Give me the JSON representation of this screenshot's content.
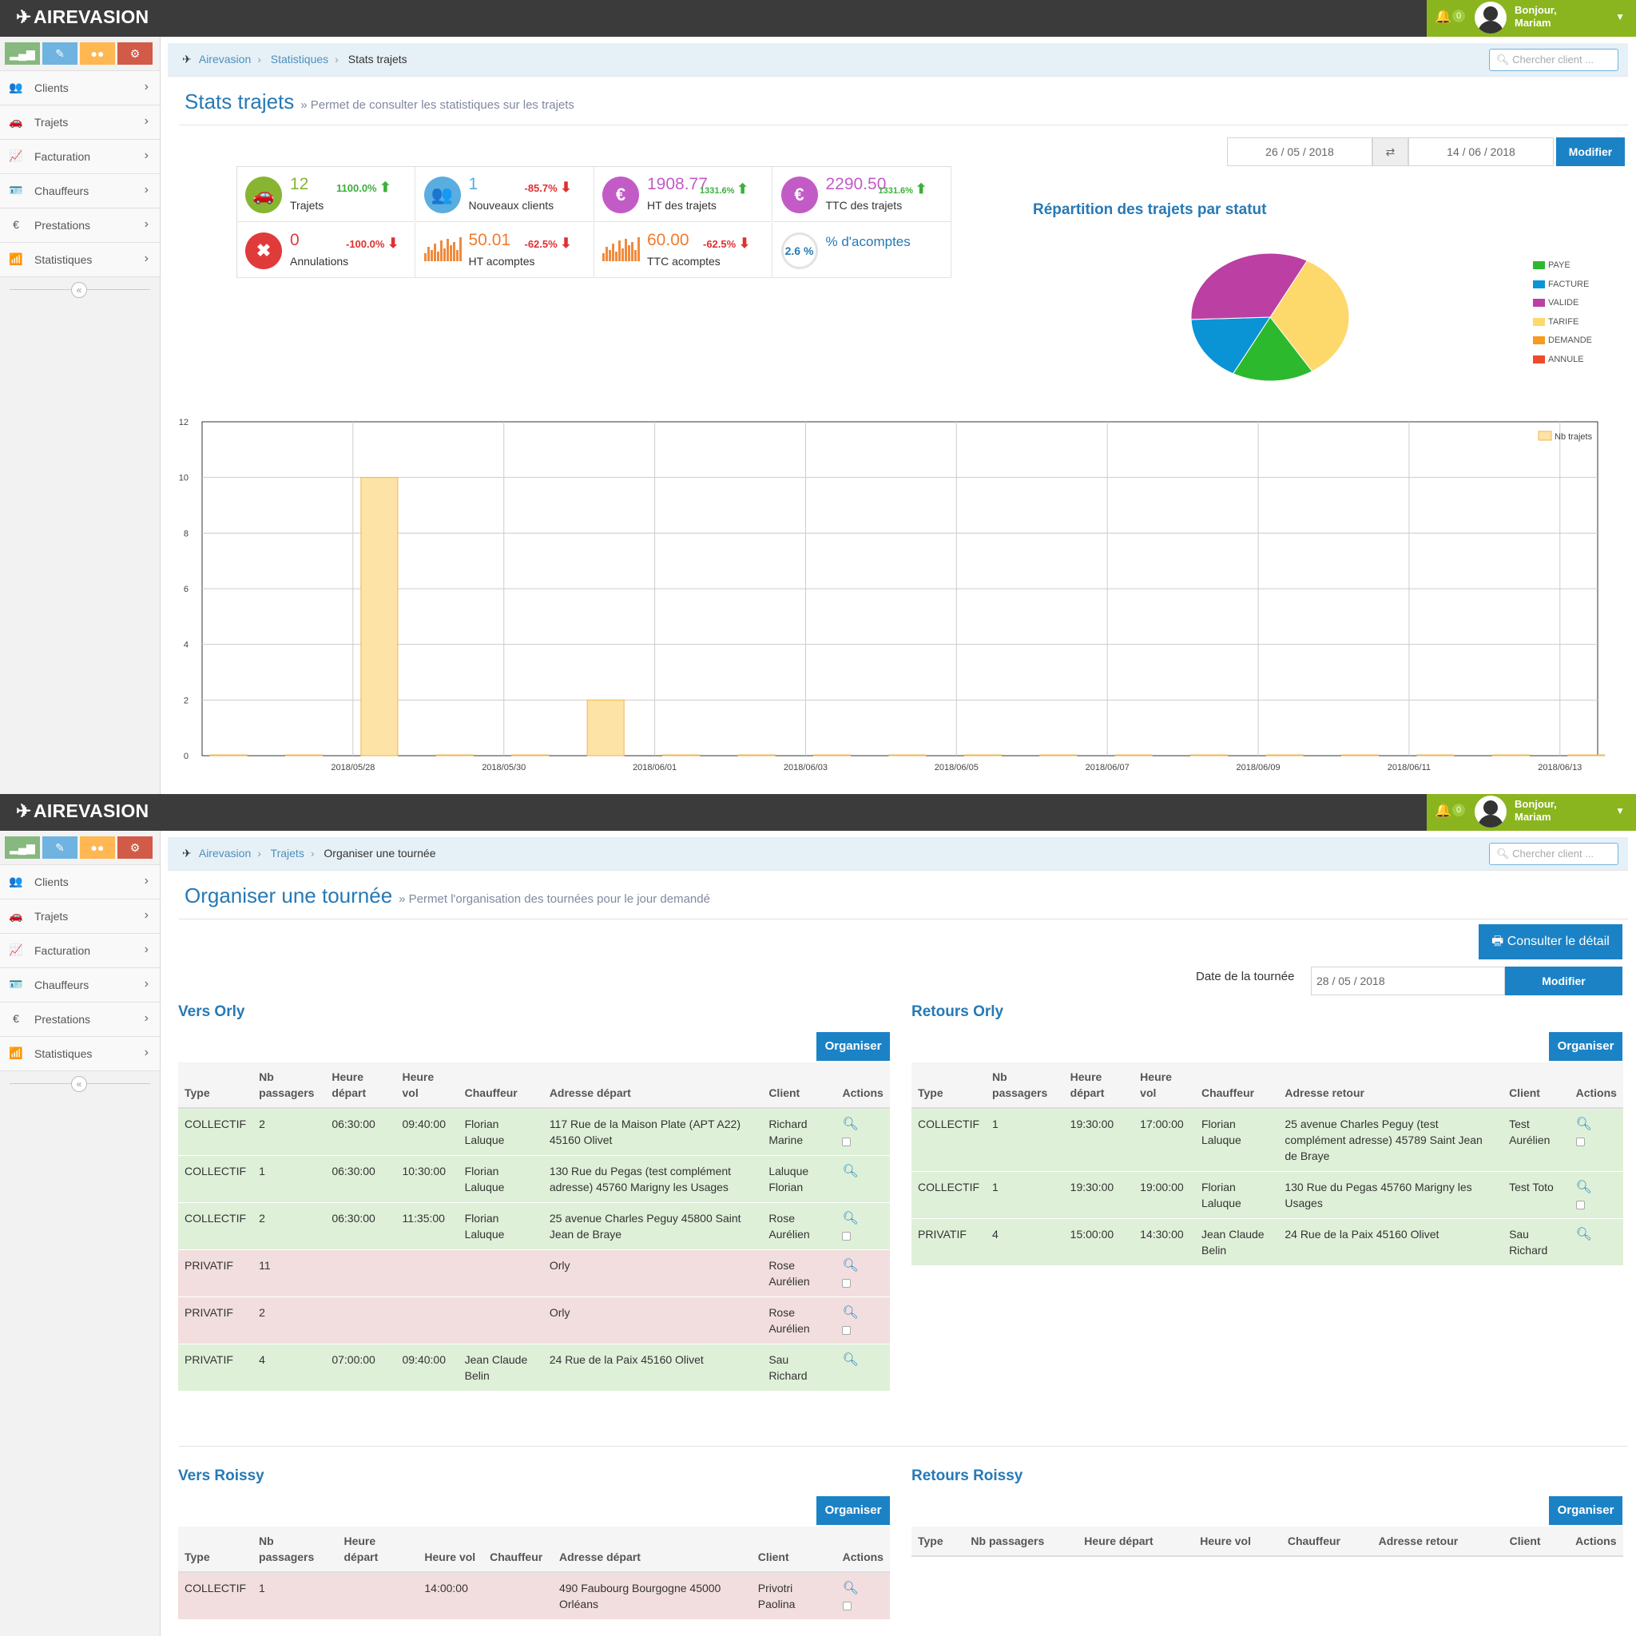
{
  "app": {
    "brand": "AIREVASION",
    "notif_count": "0",
    "greeting": "Bonjour,",
    "user": "Mariam",
    "search_placeholder": "Chercher client ..."
  },
  "sidebar": {
    "items": [
      {
        "label": "Clients",
        "icon": "users-icon"
      },
      {
        "label": "Trajets",
        "icon": "car-icon"
      },
      {
        "label": "Facturation",
        "icon": "chart-line-icon"
      },
      {
        "label": "Chauffeurs",
        "icon": "id-card-icon"
      },
      {
        "label": "Prestations",
        "icon": "euro-icon"
      },
      {
        "label": "Statistiques",
        "icon": "signal-icon"
      }
    ]
  },
  "stats_page": {
    "breadcrumb": [
      "Airevasion",
      "Statistiques",
      "Stats trajets"
    ],
    "title": "Stats trajets",
    "subtitle": "» Permet de consulter les statistiques sur les trajets",
    "date_from": "26 / 05 / 2018",
    "date_to": "14 / 06 / 2018",
    "modify": "Modifier",
    "tiles": [
      {
        "value": "12",
        "pct": "1100.0%",
        "dir": "up",
        "label": "Trajets",
        "color": "#87b532"
      },
      {
        "value": "1",
        "pct": "-85.7%",
        "dir": "down",
        "label": "Nouveaux clients",
        "color": "#5aaddf"
      },
      {
        "value": "1908.77",
        "pct": "1331.6%",
        "dir": "up",
        "label": "HT des trajets",
        "color": "#c35bc7"
      },
      {
        "value": "2290.50",
        "pct": "1331.6%",
        "dir": "up",
        "label": "TTC des trajets",
        "color": "#c35bc7"
      },
      {
        "value": "0",
        "pct": "-100.0%",
        "dir": "down",
        "label": "Annulations",
        "color": "#e03a3a"
      },
      {
        "value": "50.01",
        "pct": "-62.5%",
        "dir": "down",
        "label": "HT acomptes",
        "color": "#ef7c2f"
      },
      {
        "value": "60.00",
        "pct": "-62.5%",
        "dir": "down",
        "label": "TTC acomptes",
        "color": "#ef7c2f"
      },
      {
        "value": "2.6 %",
        "pct": "",
        "dir": "",
        "label": "% d'acomptes",
        "color": "#2679b5"
      }
    ],
    "pie_title": "Répartition des trajets par statut",
    "legend": [
      {
        "label": "PAYE",
        "color": "#2db92d"
      },
      {
        "label": "FACTURE",
        "color": "#0a94d6"
      },
      {
        "label": "VALIDE",
        "color": "#bc3fa3"
      },
      {
        "label": "TARIFE",
        "color": "#fdd96b"
      },
      {
        "label": "DEMANDE",
        "color": "#f79a1e"
      },
      {
        "label": "ANNULE",
        "color": "#ef4a2b"
      }
    ]
  },
  "chart_data": [
    {
      "type": "pie",
      "title": "Répartition des trajets par statut",
      "categories": [
        "PAYE",
        "FACTURE",
        "VALIDE",
        "TARIFE",
        "DEMANDE",
        "ANNULE"
      ],
      "values": [
        2,
        2,
        4,
        4,
        0,
        0
      ],
      "colors": [
        "#2db92d",
        "#0a94d6",
        "#bc3fa3",
        "#fdd96b",
        "#f79a1e",
        "#ef4a2b"
      ]
    },
    {
      "type": "bar",
      "series": [
        {
          "name": "Nb trajets",
          "values": [
            0,
            0,
            10,
            0,
            0,
            2,
            0,
            0,
            0,
            0,
            0,
            0,
            0,
            0,
            0,
            0,
            0,
            0,
            0
          ]
        }
      ],
      "x": [
        "2018/05/26",
        "2018/05/27",
        "2018/05/28",
        "2018/05/29",
        "2018/05/30",
        "2018/05/31",
        "2018/06/01",
        "2018/06/02",
        "2018/06/03",
        "2018/06/04",
        "2018/06/05",
        "2018/06/06",
        "2018/06/07",
        "2018/06/08",
        "2018/06/09",
        "2018/06/10",
        "2018/06/11",
        "2018/06/12",
        "2018/06/13"
      ],
      "xticks": [
        "2018/05/28",
        "2018/05/30",
        "2018/06/01",
        "2018/06/03",
        "2018/06/05",
        "2018/06/07",
        "2018/06/09",
        "2018/06/11",
        "2018/06/13"
      ],
      "yticks": [
        0,
        2,
        4,
        6,
        8,
        10,
        12
      ],
      "ylim": [
        0,
        12
      ],
      "grid": true,
      "legend": "top-right",
      "color": "#fde3a6"
    }
  ],
  "tour_page": {
    "breadcrumb": [
      "Airevasion",
      "Trajets",
      "Organiser une tournée"
    ],
    "title": "Organiser une tournée",
    "subtitle": "» Permet l'organisation des tournées pour le jour demandé",
    "detail_button": "Consulter le détail",
    "date_label": "Date de la tournée",
    "date_value": "28 / 05 / 2018",
    "modify": "Modifier",
    "organise": "Organiser",
    "vers_orly": {
      "title": "Vers Orly",
      "headers": [
        "Type",
        "Nb passagers",
        "Heure départ",
        "Heure vol",
        "Chauffeur",
        "Adresse départ",
        "Client",
        "Actions"
      ],
      "rows": [
        {
          "c": "g",
          "type": "COLLECTIF",
          "nb": "2",
          "dep": "06:30:00",
          "vol": "09:40:00",
          "chauffeur": "Florian Laluque",
          "adresse": "117 Rue de la Maison Plate (APT A22) 45160 Olivet",
          "client": "Richard Marine",
          "chk": true
        },
        {
          "c": "g",
          "type": "COLLECTIF",
          "nb": "1",
          "dep": "06:30:00",
          "vol": "10:30:00",
          "chauffeur": "Florian Laluque",
          "adresse": "130 Rue du Pegas (test complément adresse) 45760 Marigny les Usages",
          "client": "Laluque Florian",
          "chk": false
        },
        {
          "c": "g",
          "type": "COLLECTIF",
          "nb": "2",
          "dep": "06:30:00",
          "vol": "11:35:00",
          "chauffeur": "Florian Laluque",
          "adresse": "25 avenue Charles Peguy 45800 Saint Jean de Braye",
          "client": "Rose Aurélien",
          "chk": true
        },
        {
          "c": "r",
          "type": "PRIVATIF",
          "nb": "11",
          "dep": "",
          "vol": "",
          "chauffeur": "",
          "adresse": "Orly",
          "client": "Rose Aurélien",
          "chk": true
        },
        {
          "c": "r",
          "type": "PRIVATIF",
          "nb": "2",
          "dep": "",
          "vol": "",
          "chauffeur": "",
          "adresse": "Orly",
          "client": "Rose Aurélien",
          "chk": true
        },
        {
          "c": "g",
          "type": "PRIVATIF",
          "nb": "4",
          "dep": "07:00:00",
          "vol": "09:40:00",
          "chauffeur": "Jean Claude Belin",
          "adresse": "24 Rue de la Paix 45160 Olivet",
          "client": "Sau Richard",
          "chk": false
        }
      ]
    },
    "retours_orly": {
      "title": "Retours Orly",
      "headers": [
        "Type",
        "Nb passagers",
        "Heure départ",
        "Heure vol",
        "Chauffeur",
        "Adresse retour",
        "Client",
        "Actions"
      ],
      "rows": [
        {
          "c": "g",
          "type": "COLLECTIF",
          "nb": "1",
          "dep": "19:30:00",
          "vol": "17:00:00",
          "chauffeur": "Florian Laluque",
          "adresse": "25 avenue Charles Peguy (test complément adresse) 45789 Saint Jean de Braye",
          "client": "Test Aurélien",
          "chk": true
        },
        {
          "c": "g",
          "type": "COLLECTIF",
          "nb": "1",
          "dep": "19:30:00",
          "vol": "19:00:00",
          "chauffeur": "Florian Laluque",
          "adresse": "130 Rue du Pegas 45760 Marigny les Usages",
          "client": "Test Toto",
          "chk": true
        },
        {
          "c": "g",
          "type": "PRIVATIF",
          "nb": "4",
          "dep": "15:00:00",
          "vol": "14:30:00",
          "chauffeur": "Jean Claude Belin",
          "adresse": "24 Rue de la Paix 45160 Olivet",
          "client": "Sau Richard",
          "chk": false
        }
      ]
    },
    "vers_roissy": {
      "title": "Vers Roissy",
      "headers": [
        "Type",
        "Nb passagers",
        "Heure départ",
        "Heure vol",
        "Chauffeur",
        "Adresse départ",
        "Client",
        "Actions"
      ],
      "rows": [
        {
          "c": "r",
          "type": "COLLECTIF",
          "nb": "1",
          "dep": "",
          "vol": "14:00:00",
          "chauffeur": "",
          "adresse": "490 Faubourg Bourgogne 45000 Orléans",
          "client": "Privotri Paolina",
          "chk": true
        }
      ]
    },
    "retours_roissy": {
      "title": "Retours Roissy",
      "headers": [
        "Type",
        "Nb passagers",
        "Heure départ",
        "Heure vol",
        "Chauffeur",
        "Adresse retour",
        "Client",
        "Actions"
      ],
      "rows": []
    }
  }
}
